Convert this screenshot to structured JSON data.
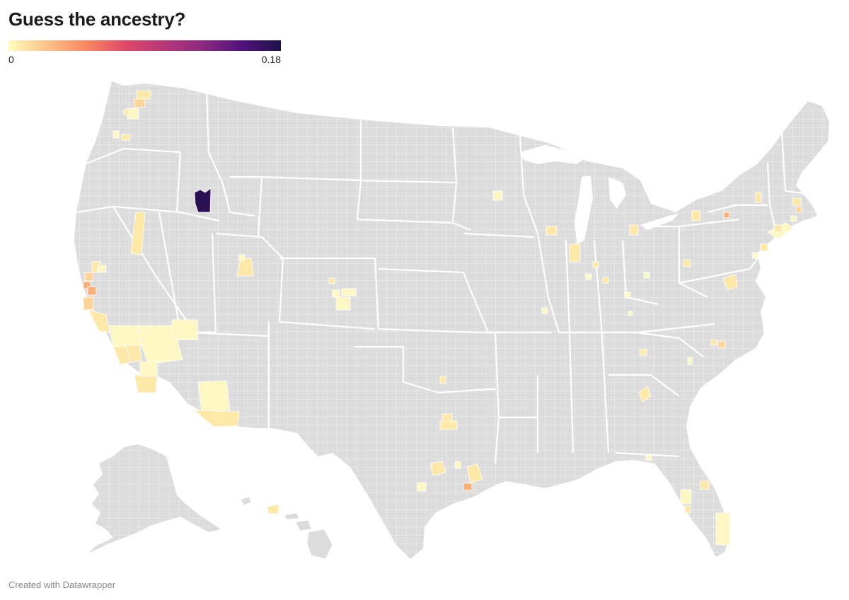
{
  "title": "Guess the ancestry?",
  "legend": {
    "min_label": "0",
    "max_label": "0.18",
    "range": [
      0,
      0.18
    ],
    "color_stops": [
      "#fcfdbf",
      "#fec287",
      "#fb8761",
      "#de4968",
      "#b73779",
      "#8c2981",
      "#51127c",
      "#1d1147"
    ]
  },
  "map": {
    "region": "United States counties",
    "base_color": "#dcdcdc",
    "county_border_color": "#ffffff",
    "highlight_colors": {
      "very_low": "#fdf7c4",
      "low": "#fde8a8",
      "low_mid": "#fdd59a",
      "mid": "#f9b07a",
      "max": "#2a1152"
    }
  },
  "credit": "Created with Datawrapper"
}
